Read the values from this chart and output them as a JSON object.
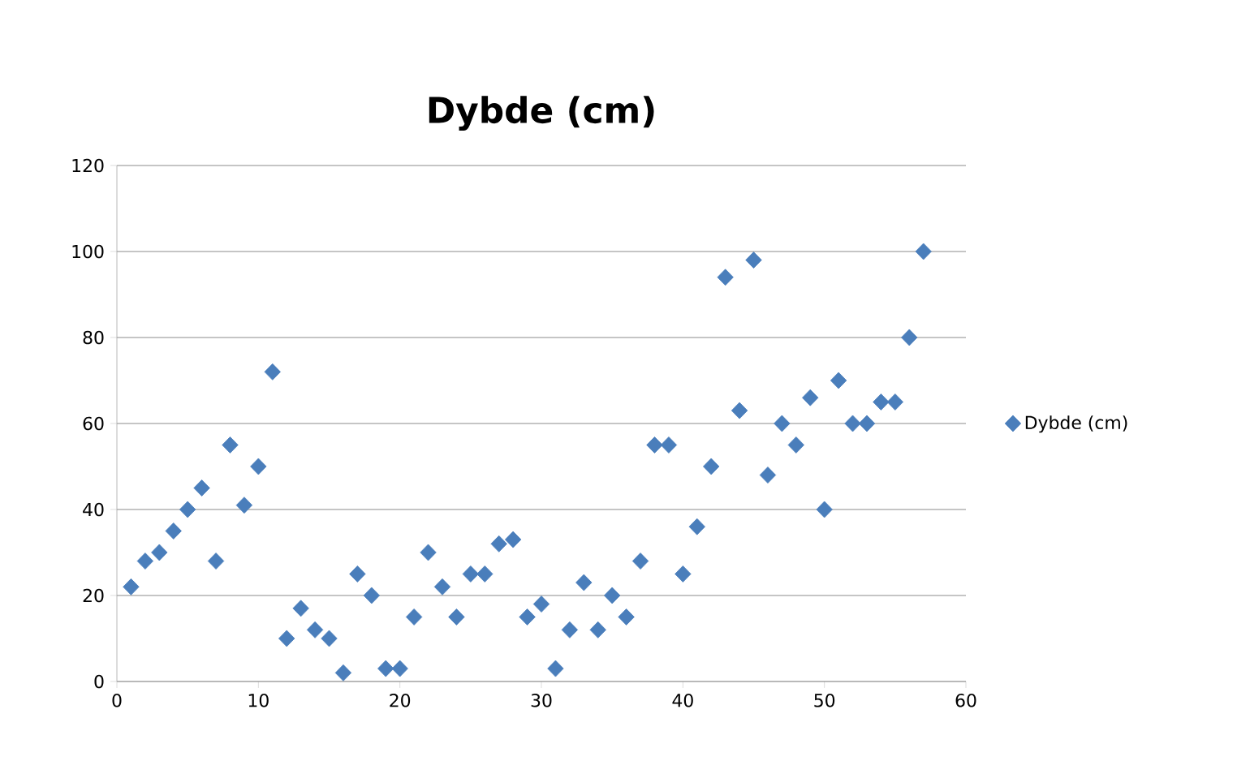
{
  "chart_data": {
    "type": "scatter",
    "title": "Dybde (cm)",
    "x": [
      1,
      2,
      3,
      4,
      5,
      6,
      7,
      8,
      9,
      10,
      11,
      12,
      13,
      14,
      15,
      16,
      17,
      18,
      19,
      20,
      21,
      22,
      23,
      24,
      25,
      26,
      27,
      28,
      29,
      30,
      31,
      32,
      33,
      34,
      35,
      36,
      37,
      38,
      39,
      40,
      41,
      42,
      43,
      44,
      45,
      46,
      47,
      48,
      49,
      50,
      51,
      52,
      53,
      54,
      55,
      56,
      57
    ],
    "series": [
      {
        "name": "Dybde (cm)",
        "color": "#4a7ebb",
        "values": [
          22,
          28,
          30,
          35,
          40,
          45,
          28,
          55,
          41,
          50,
          72,
          10,
          17,
          12,
          10,
          2,
          25,
          20,
          3,
          3,
          15,
          30,
          22,
          15,
          25,
          25,
          32,
          33,
          15,
          18,
          3,
          12,
          23,
          12,
          20,
          15,
          28,
          55,
          55,
          25,
          36,
          50,
          94,
          63,
          98,
          48,
          60,
          55,
          66,
          40,
          70,
          60,
          60,
          65,
          65,
          80,
          100
        ]
      }
    ],
    "xlim": [
      0,
      60
    ],
    "xticks": [
      0,
      10,
      20,
      30,
      40,
      50,
      60
    ],
    "ylim": [
      0,
      120
    ],
    "yticks": [
      0,
      20,
      40,
      60,
      80,
      100,
      120
    ],
    "grid": "y",
    "legend": "right",
    "marker": "diamond"
  }
}
